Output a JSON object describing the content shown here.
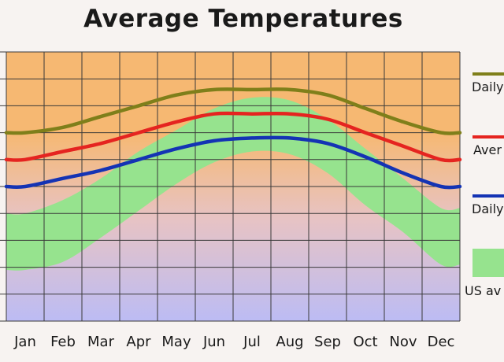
{
  "chart_data": {
    "type": "line",
    "title": "Average Temperatures",
    "categories": [
      "Jan",
      "Feb",
      "Mar",
      "Apr",
      "May",
      "Jun",
      "Jul",
      "Aug",
      "Sep",
      "Oct",
      "Nov",
      "Dec"
    ],
    "series": [
      {
        "name": "Daily",
        "color": "#7f7f1a",
        "values": [
          65,
          67,
          71,
          75,
          79,
          81,
          81,
          81,
          79,
          74,
          69,
          65
        ]
      },
      {
        "name": "Aver",
        "color": "#e52420",
        "values": [
          55,
          58,
          61,
          65,
          69,
          72,
          72,
          72,
          70,
          65,
          60,
          55
        ]
      },
      {
        "name": "Daily",
        "color": "#1433b4",
        "values": [
          45,
          48,
          51,
          55,
          59,
          62,
          63,
          63,
          61,
          56,
          50,
          45
        ]
      }
    ],
    "us_average_band": {
      "name": "US av",
      "color": "#96e38e",
      "upper": [
        35,
        40,
        48,
        58,
        66,
        74,
        78,
        77,
        70,
        59,
        48,
        37
      ],
      "lower": [
        14,
        17,
        26,
        36,
        46,
        54,
        58,
        57,
        50,
        38,
        28,
        16
      ]
    },
    "background": {
      "warm": "#f6b872",
      "mid": "#e7c3c4",
      "cool": "#bcbcf4"
    },
    "ylim": [
      -5,
      95
    ],
    "grid": true,
    "legend_position": "right"
  }
}
